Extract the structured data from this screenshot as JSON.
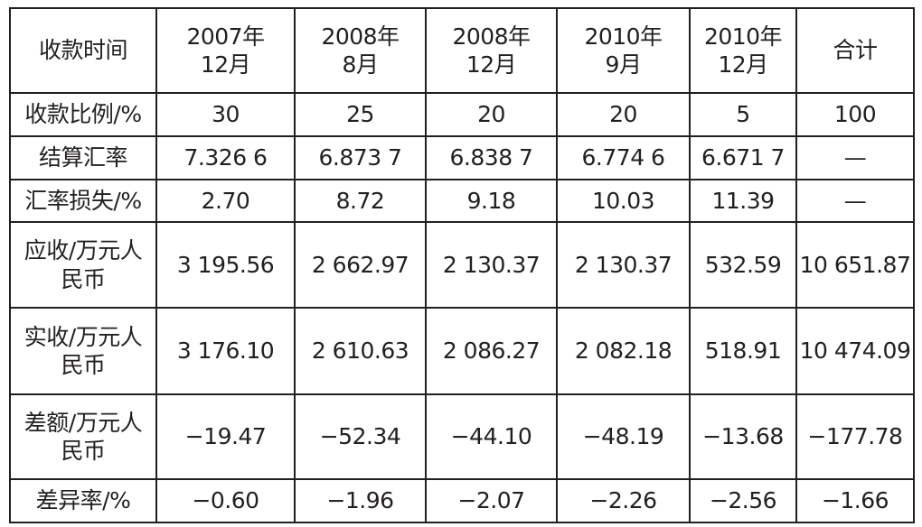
{
  "table": {
    "header": [
      "收款时间",
      "2007年\n12月",
      "2008年\n8月",
      "2008年\n12月",
      "2010年\n9月",
      "2010年\n12月",
      "合计"
    ],
    "rows": [
      [
        "收款比例/%",
        "30",
        "25",
        "20",
        "20",
        "5",
        "100"
      ],
      [
        "结算汇率",
        "7.326 6",
        "6.873 7",
        "6.838 7",
        "6.774 6",
        "6.671 7",
        "—"
      ],
      [
        "汇率损失/%",
        "2.70",
        "8.72",
        "9.18",
        "10.03",
        "11.39",
        "—"
      ],
      [
        "应收/万元人\n民币",
        "3 195.56",
        "2 662.97",
        "2 130.37",
        "2 130.37",
        "532.59",
        "10 651.87"
      ],
      [
        "实收/万元人\n民币",
        "3 176.10",
        "2 610.63",
        "2 086.27",
        "2 082.18",
        "518.91",
        "10 474.09"
      ],
      [
        "差额/万元人\n民币",
        "−19.47",
        "−52.34",
        "−44.10",
        "−48.19",
        "−13.68",
        "−177.78"
      ],
      [
        "差异率/%",
        "−0.60",
        "−1.96",
        "−2.07",
        "−2.26",
        "−2.56",
        "−1.66"
      ]
    ]
  }
}
